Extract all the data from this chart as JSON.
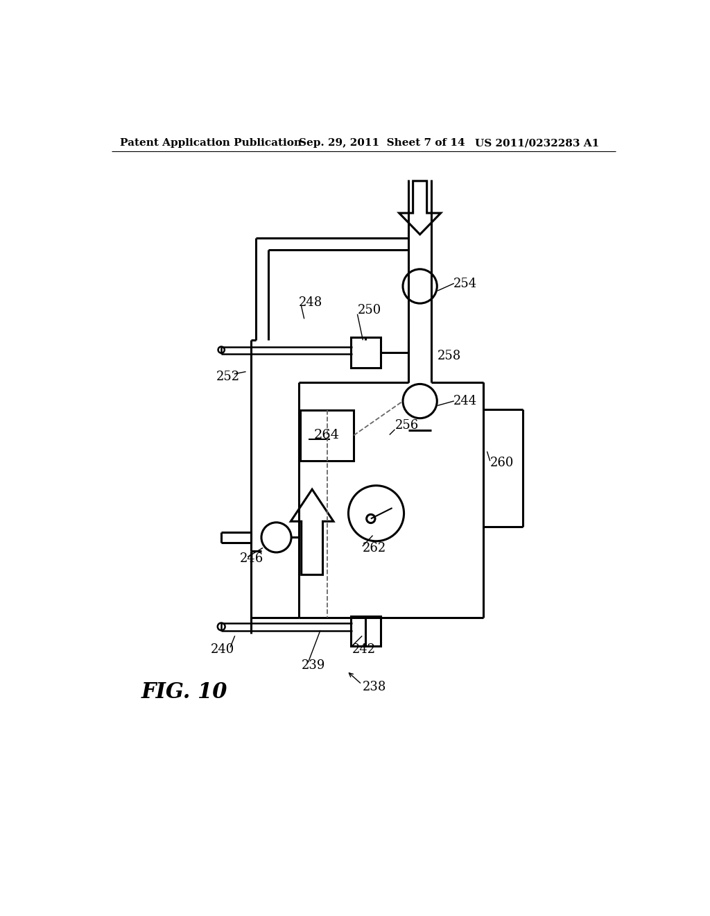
{
  "title_left": "Patent Application Publication",
  "title_mid": "Sep. 29, 2011  Sheet 7 of 14",
  "title_right": "US 2011/0232283 A1",
  "fig_label": "FIG. 10",
  "background_color": "#ffffff",
  "line_color": "#000000"
}
